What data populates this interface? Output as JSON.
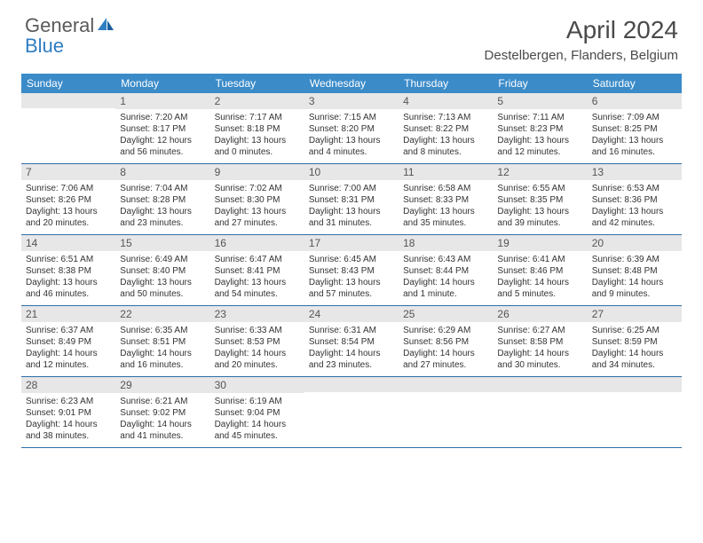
{
  "logo": {
    "word1": "General",
    "word2": "Blue"
  },
  "title": "April 2024",
  "location": "Destelbergen, Flanders, Belgium",
  "colors": {
    "header_bg": "#3b8bc9",
    "header_text": "#ffffff",
    "daynum_bg": "#e7e7e7",
    "row_border": "#2f6fa8",
    "logo_gray": "#5a5a5a",
    "logo_blue": "#2f7ec2"
  },
  "dow": [
    "Sunday",
    "Monday",
    "Tuesday",
    "Wednesday",
    "Thursday",
    "Friday",
    "Saturday"
  ],
  "weeks": [
    [
      {
        "n": "",
        "sr": "",
        "ss": "",
        "dl": ""
      },
      {
        "n": "1",
        "sr": "7:20 AM",
        "ss": "8:17 PM",
        "dl": "12 hours and 56 minutes."
      },
      {
        "n": "2",
        "sr": "7:17 AM",
        "ss": "8:18 PM",
        "dl": "13 hours and 0 minutes."
      },
      {
        "n": "3",
        "sr": "7:15 AM",
        "ss": "8:20 PM",
        "dl": "13 hours and 4 minutes."
      },
      {
        "n": "4",
        "sr": "7:13 AM",
        "ss": "8:22 PM",
        "dl": "13 hours and 8 minutes."
      },
      {
        "n": "5",
        "sr": "7:11 AM",
        "ss": "8:23 PM",
        "dl": "13 hours and 12 minutes."
      },
      {
        "n": "6",
        "sr": "7:09 AM",
        "ss": "8:25 PM",
        "dl": "13 hours and 16 minutes."
      }
    ],
    [
      {
        "n": "7",
        "sr": "7:06 AM",
        "ss": "8:26 PM",
        "dl": "13 hours and 20 minutes."
      },
      {
        "n": "8",
        "sr": "7:04 AM",
        "ss": "8:28 PM",
        "dl": "13 hours and 23 minutes."
      },
      {
        "n": "9",
        "sr": "7:02 AM",
        "ss": "8:30 PM",
        "dl": "13 hours and 27 minutes."
      },
      {
        "n": "10",
        "sr": "7:00 AM",
        "ss": "8:31 PM",
        "dl": "13 hours and 31 minutes."
      },
      {
        "n": "11",
        "sr": "6:58 AM",
        "ss": "8:33 PM",
        "dl": "13 hours and 35 minutes."
      },
      {
        "n": "12",
        "sr": "6:55 AM",
        "ss": "8:35 PM",
        "dl": "13 hours and 39 minutes."
      },
      {
        "n": "13",
        "sr": "6:53 AM",
        "ss": "8:36 PM",
        "dl": "13 hours and 42 minutes."
      }
    ],
    [
      {
        "n": "14",
        "sr": "6:51 AM",
        "ss": "8:38 PM",
        "dl": "13 hours and 46 minutes."
      },
      {
        "n": "15",
        "sr": "6:49 AM",
        "ss": "8:40 PM",
        "dl": "13 hours and 50 minutes."
      },
      {
        "n": "16",
        "sr": "6:47 AM",
        "ss": "8:41 PM",
        "dl": "13 hours and 54 minutes."
      },
      {
        "n": "17",
        "sr": "6:45 AM",
        "ss": "8:43 PM",
        "dl": "13 hours and 57 minutes."
      },
      {
        "n": "18",
        "sr": "6:43 AM",
        "ss": "8:44 PM",
        "dl": "14 hours and 1 minute."
      },
      {
        "n": "19",
        "sr": "6:41 AM",
        "ss": "8:46 PM",
        "dl": "14 hours and 5 minutes."
      },
      {
        "n": "20",
        "sr": "6:39 AM",
        "ss": "8:48 PM",
        "dl": "14 hours and 9 minutes."
      }
    ],
    [
      {
        "n": "21",
        "sr": "6:37 AM",
        "ss": "8:49 PM",
        "dl": "14 hours and 12 minutes."
      },
      {
        "n": "22",
        "sr": "6:35 AM",
        "ss": "8:51 PM",
        "dl": "14 hours and 16 minutes."
      },
      {
        "n": "23",
        "sr": "6:33 AM",
        "ss": "8:53 PM",
        "dl": "14 hours and 20 minutes."
      },
      {
        "n": "24",
        "sr": "6:31 AM",
        "ss": "8:54 PM",
        "dl": "14 hours and 23 minutes."
      },
      {
        "n": "25",
        "sr": "6:29 AM",
        "ss": "8:56 PM",
        "dl": "14 hours and 27 minutes."
      },
      {
        "n": "26",
        "sr": "6:27 AM",
        "ss": "8:58 PM",
        "dl": "14 hours and 30 minutes."
      },
      {
        "n": "27",
        "sr": "6:25 AM",
        "ss": "8:59 PM",
        "dl": "14 hours and 34 minutes."
      }
    ],
    [
      {
        "n": "28",
        "sr": "6:23 AM",
        "ss": "9:01 PM",
        "dl": "14 hours and 38 minutes."
      },
      {
        "n": "29",
        "sr": "6:21 AM",
        "ss": "9:02 PM",
        "dl": "14 hours and 41 minutes."
      },
      {
        "n": "30",
        "sr": "6:19 AM",
        "ss": "9:04 PM",
        "dl": "14 hours and 45 minutes."
      },
      {
        "n": "",
        "sr": "",
        "ss": "",
        "dl": ""
      },
      {
        "n": "",
        "sr": "",
        "ss": "",
        "dl": ""
      },
      {
        "n": "",
        "sr": "",
        "ss": "",
        "dl": ""
      },
      {
        "n": "",
        "sr": "",
        "ss": "",
        "dl": ""
      }
    ]
  ],
  "labels": {
    "sunrise": "Sunrise:",
    "sunset": "Sunset:",
    "daylight": "Daylight:"
  }
}
